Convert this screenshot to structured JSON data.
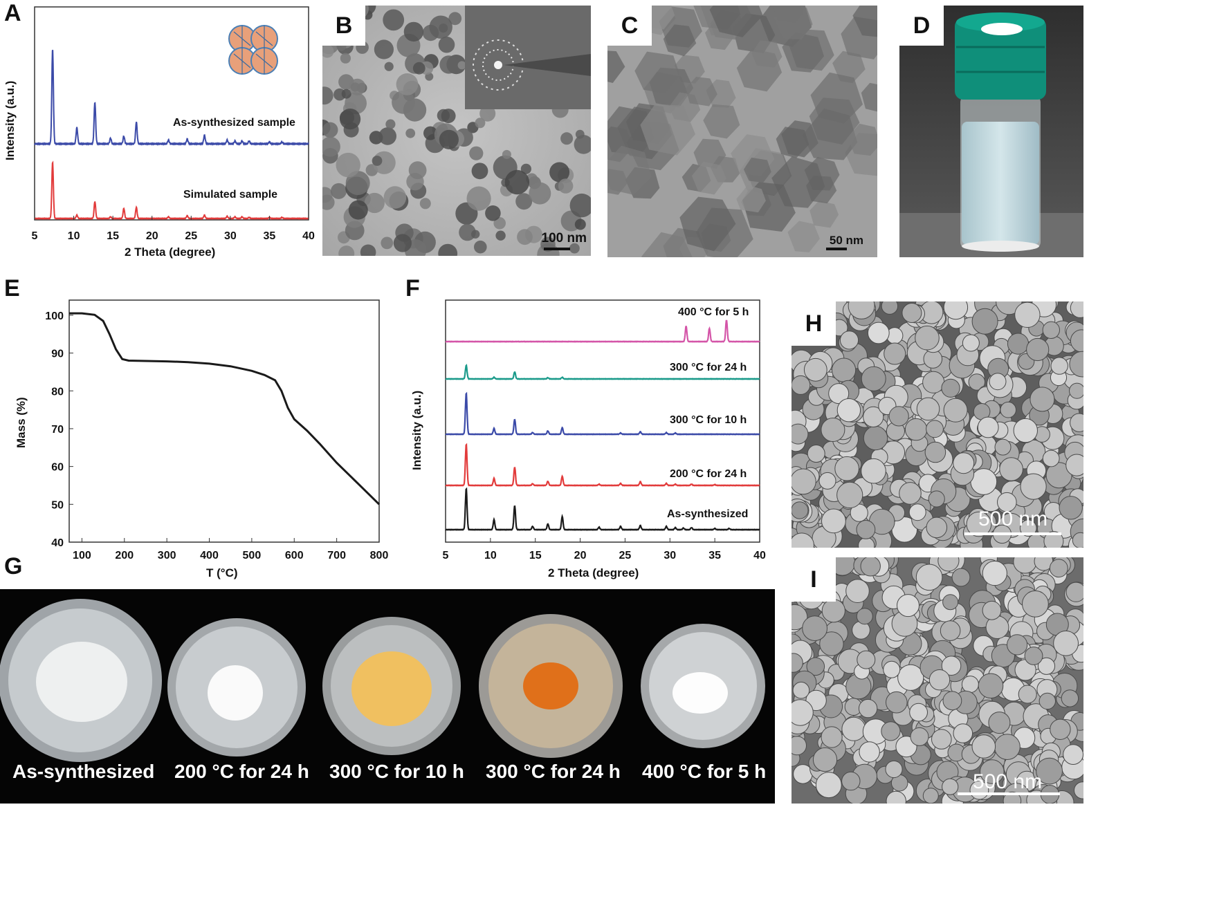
{
  "panels": {
    "a": {
      "letter": "A"
    },
    "b": {
      "letter": "B"
    },
    "c": {
      "letter": "C"
    },
    "d": {
      "letter": "D"
    },
    "e": {
      "letter": "E"
    },
    "f": {
      "letter": "F"
    },
    "g": {
      "letter": "G"
    },
    "h": {
      "letter": "H"
    },
    "i": {
      "letter": "I"
    }
  },
  "scale_bars": {
    "b": "100 nm",
    "c": "50 nm",
    "h": "500 nm",
    "i": "500 nm"
  },
  "photo_g_labels": [
    "As-synthesized",
    "200 °C for 24 h",
    "300 °C for 10 h",
    "300 °C for 24 h",
    "400 °C for 5 h"
  ],
  "colors": {
    "blue": "#3b4aa8",
    "red": "#e23b3b",
    "black": "#1a1a1a",
    "teal": "#1a9a8a",
    "magenta": "#d455a8",
    "vial_cap": "#0f8f7a",
    "powder_yellow": "#f0c060",
    "powder_orange": "#e0701a"
  },
  "chart_data": [
    {
      "panel": "A",
      "type": "line",
      "xlabel": "2 Theta (degree)",
      "ylabel": "Intensity (a.u.)",
      "xlim": [
        5,
        40
      ],
      "xticks": [
        5,
        10,
        15,
        20,
        25,
        30,
        35,
        40
      ],
      "series": [
        {
          "name": "As-synthesized sample",
          "color": "#3b4aa8",
          "peaks": [
            [
              7.3,
              100
            ],
            [
              10.4,
              17
            ],
            [
              12.7,
              44
            ],
            [
              14.7,
              6
            ],
            [
              16.4,
              8
            ],
            [
              18.0,
              23
            ],
            [
              22.1,
              4
            ],
            [
              24.5,
              5
            ],
            [
              26.7,
              9
            ],
            [
              29.6,
              4
            ],
            [
              30.6,
              3
            ],
            [
              31.5,
              3
            ],
            [
              32.4,
              3
            ],
            [
              35.0,
              2
            ],
            [
              36.6,
              2
            ]
          ]
        },
        {
          "name": "Simulated sample",
          "color": "#e23b3b",
          "peaks": [
            [
              7.3,
              100
            ],
            [
              10.4,
              6
            ],
            [
              12.7,
              30
            ],
            [
              14.7,
              3
            ],
            [
              16.4,
              18
            ],
            [
              18.0,
              20
            ],
            [
              22.1,
              3
            ],
            [
              24.5,
              5
            ],
            [
              26.7,
              6
            ],
            [
              29.6,
              4
            ],
            [
              30.6,
              3
            ],
            [
              31.5,
              3
            ],
            [
              32.4,
              2
            ],
            [
              35.0,
              2
            ],
            [
              36.6,
              2
            ]
          ]
        }
      ]
    },
    {
      "panel": "E",
      "type": "line",
      "xlabel": "T (°C)",
      "ylabel": "Mass (%)",
      "xlim": [
        70,
        800
      ],
      "ylim": [
        40,
        104
      ],
      "xticks": [
        100,
        200,
        300,
        400,
        500,
        600,
        700,
        800
      ],
      "yticks": [
        40,
        50,
        60,
        70,
        80,
        90,
        100
      ],
      "x": [
        70,
        100,
        130,
        150,
        165,
        180,
        195,
        210,
        250,
        300,
        350,
        400,
        450,
        500,
        530,
        555,
        570,
        585,
        600,
        630,
        660,
        700,
        750,
        800
      ],
      "y": [
        100.5,
        100.5,
        100.1,
        98.5,
        95.0,
        91.0,
        88.4,
        88.0,
        87.9,
        87.8,
        87.6,
        87.2,
        86.5,
        85.3,
        84.2,
        82.8,
        80.0,
        75.5,
        72.5,
        69.5,
        66.0,
        61.0,
        55.5,
        50.0
      ]
    },
    {
      "panel": "F",
      "type": "line",
      "xlabel": "2 Theta (degree)",
      "ylabel": "Intensity (a.u.)",
      "xlim": [
        5,
        40
      ],
      "xticks": [
        5,
        10,
        15,
        20,
        25,
        30,
        35,
        40
      ],
      "series": [
        {
          "name": "As-synthesized",
          "color": "#1a1a1a",
          "peaks": [
            [
              7.3,
              100
            ],
            [
              10.4,
              24
            ],
            [
              12.7,
              58
            ],
            [
              14.7,
              8
            ],
            [
              16.4,
              14
            ],
            [
              18.0,
              32
            ],
            [
              22.1,
              6
            ],
            [
              24.5,
              8
            ],
            [
              26.7,
              10
            ],
            [
              29.6,
              8
            ],
            [
              30.6,
              5
            ],
            [
              31.5,
              4
            ],
            [
              32.4,
              5
            ],
            [
              35.0,
              3
            ],
            [
              36.6,
              3
            ]
          ]
        },
        {
          "name": "200 °C for 24 h",
          "color": "#e23b3b",
          "peaks": [
            [
              7.3,
              100
            ],
            [
              10.4,
              17
            ],
            [
              12.7,
              44
            ],
            [
              14.7,
              4
            ],
            [
              16.4,
              10
            ],
            [
              18.0,
              22
            ],
            [
              22.1,
              3
            ],
            [
              24.5,
              5
            ],
            [
              26.7,
              9
            ],
            [
              29.6,
              5
            ],
            [
              30.6,
              3
            ],
            [
              32.4,
              3
            ],
            [
              35.0,
              2
            ]
          ]
        },
        {
          "name": "300 °C for 10 h",
          "color": "#3b4aa8",
          "peaks": [
            [
              7.3,
              100
            ],
            [
              10.4,
              14
            ],
            [
              12.7,
              36
            ],
            [
              14.7,
              4
            ],
            [
              16.4,
              8
            ],
            [
              18.0,
              16
            ],
            [
              24.5,
              3
            ],
            [
              26.7,
              6
            ],
            [
              29.6,
              4
            ],
            [
              30.6,
              3
            ]
          ]
        },
        {
          "name": "300 °C for 24 h",
          "color": "#1a9a8a",
          "peaks": [
            [
              7.3,
              33
            ],
            [
              10.4,
              4
            ],
            [
              12.7,
              17
            ],
            [
              16.4,
              3
            ],
            [
              18.0,
              4
            ]
          ]
        },
        {
          "name": "400 °C for 5 h",
          "color": "#d455a8",
          "peaks": [
            [
              31.8,
              37
            ],
            [
              34.4,
              32
            ],
            [
              36.3,
              52
            ]
          ]
        }
      ]
    }
  ]
}
